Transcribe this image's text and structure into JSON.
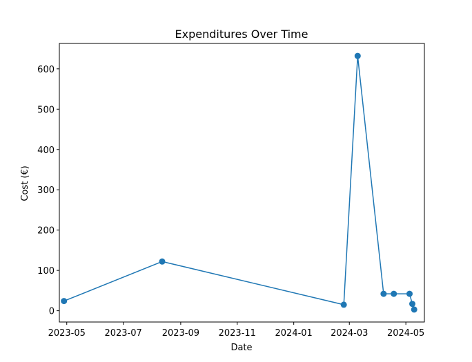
{
  "chart_data": {
    "type": "line",
    "title": "Expenditures Over Time",
    "xlabel": "Date",
    "ylabel": "Cost (€)",
    "x_ticks": [
      "2023-05",
      "2023-07",
      "2023-09",
      "2023-11",
      "2024-01",
      "2024-03",
      "2024-05"
    ],
    "y_ticks": [
      0,
      100,
      200,
      300,
      400,
      500,
      600
    ],
    "xlim": [
      "2023-04-23",
      "2024-05-21"
    ],
    "ylim": [
      -28,
      663
    ],
    "grid": false,
    "marker": "circle",
    "color": "#1f77b4",
    "series": [
      {
        "x": [
          "2023-04-28",
          "2023-08-12",
          "2024-02-24",
          "2024-03-10",
          "2024-04-07",
          "2024-04-18",
          "2024-05-05",
          "2024-05-08",
          "2024-05-10"
        ],
        "values": [
          24,
          122,
          15,
          632,
          42,
          42,
          42,
          17,
          3
        ]
      }
    ]
  }
}
